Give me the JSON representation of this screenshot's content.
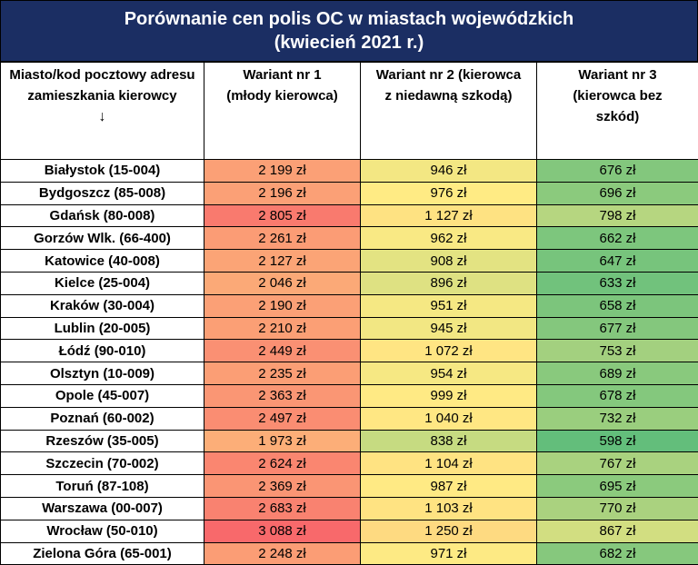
{
  "title": {
    "line1": "Porównanie cen polis OC w miastach wojewódzkich",
    "line2": "(kwiecień 2021 r.)"
  },
  "header": {
    "city": "Miasto/kod pocztowy adresu zamieszkania kierowcy",
    "arrow": "↓",
    "v1": "Wariant nr 1 (młody kierowca)",
    "v2": "Wariant nr 2 (kierowca z niedawną szkodą)",
    "v3": "Wariant nr 3 (kierowca bez szkód)"
  },
  "rows": [
    {
      "city": "Białystok (15-004)",
      "v1": "2 199 zł",
      "v2": "946 zł",
      "v3": "676 zł"
    },
    {
      "city": "Bydgoszcz (85-008)",
      "v1": "2 196 zł",
      "v2": "976 zł",
      "v3": "696 zł"
    },
    {
      "city": "Gdańsk (80-008)",
      "v1": "2 805 zł",
      "v2": "1 127 zł",
      "v3": "798 zł"
    },
    {
      "city": "Gorzów Wlk. (66-400)",
      "v1": "2 261 zł",
      "v2": "962 zł",
      "v3": "662 zł"
    },
    {
      "city": "Katowice (40-008)",
      "v1": "2 127 zł",
      "v2": "908 zł",
      "v3": "647 zł"
    },
    {
      "city": "Kielce (25-004)",
      "v1": "2 046 zł",
      "v2": "896 zł",
      "v3": "633 zł"
    },
    {
      "city": "Kraków (30-004)",
      "v1": "2 190 zł",
      "v2": "951 zł",
      "v3": "658 zł"
    },
    {
      "city": "Lublin (20-005)",
      "v1": "2 210 zł",
      "v2": "945 zł",
      "v3": "677 zł"
    },
    {
      "city": "Łódź (90-010)",
      "v1": "2 449 zł",
      "v2": "1 072 zł",
      "v3": "753 zł"
    },
    {
      "city": "Olsztyn (10-009)",
      "v1": "2 235 zł",
      "v2": "954 zł",
      "v3": "689 zł"
    },
    {
      "city": "Opole (45-007)",
      "v1": "2 363 zł",
      "v2": "999 zł",
      "v3": "678 zł"
    },
    {
      "city": "Poznań (60-002)",
      "v1": "2 497 zł",
      "v2": "1 040 zł",
      "v3": "732 zł"
    },
    {
      "city": "Rzeszów (35-005)",
      "v1": "1 973 zł",
      "v2": "838 zł",
      "v3": "598 zł"
    },
    {
      "city": "Szczecin (70-002)",
      "v1": "2 624 zł",
      "v2": "1 104 zł",
      "v3": "767 zł"
    },
    {
      "city": "Toruń (87-108)",
      "v1": "2 369 zł",
      "v2": "987 zł",
      "v3": "695 zł"
    },
    {
      "city": "Warszawa (00-007)",
      "v1": "2 683 zł",
      "v2": "1 103 zł",
      "v3": "770 zł"
    },
    {
      "city": "Wrocław (50-010)",
      "v1": "3 088 zł",
      "v2": "1 250 zł",
      "v3": "867 zł"
    },
    {
      "city": "Zielona Góra (65-001)",
      "v1": "2 248 zł",
      "v2": "971 zł",
      "v3": "682 zł"
    }
  ],
  "colors": {
    "title_bg": "#1b2e63",
    "high": "#f8696b",
    "mid": "#ffeb84",
    "low": "#63be7b"
  }
}
